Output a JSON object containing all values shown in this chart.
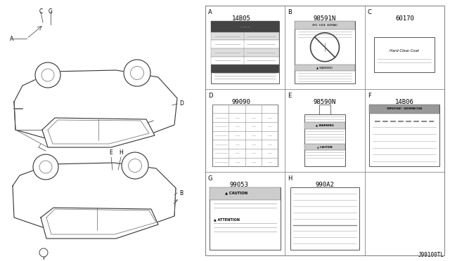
{
  "bg_color": "#ffffff",
  "border_color": "#000000",
  "line_color": "#555555",
  "text_color": "#000000",
  "grid_color": "#888888",
  "figure_ref": "J99100TL",
  "panels": [
    {
      "id": "A",
      "part": "14B05",
      "col": 0,
      "row": 0
    },
    {
      "id": "B",
      "part": "98591N",
      "col": 1,
      "row": 0
    },
    {
      "id": "C",
      "part": "60170",
      "col": 2,
      "row": 0
    },
    {
      "id": "D",
      "part": "99090",
      "col": 0,
      "row": 1
    },
    {
      "id": "E",
      "part": "98590N",
      "col": 1,
      "row": 1
    },
    {
      "id": "F",
      "part": "14B06",
      "col": 2,
      "row": 1
    },
    {
      "id": "G",
      "part": "99053",
      "col": 0,
      "row": 2
    },
    {
      "id": "H",
      "part": "990A2",
      "col": 1,
      "row": 2
    }
  ]
}
